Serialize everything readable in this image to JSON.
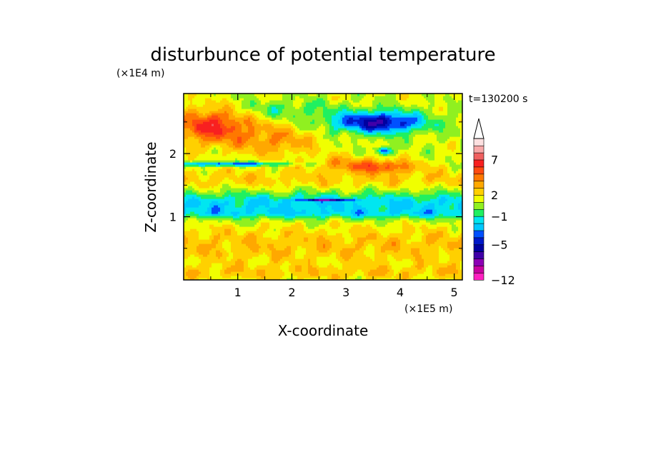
{
  "chart_data": {
    "type": "heatmap",
    "title": "disturbunce of potential temperature",
    "xlabel": "X-coordinate",
    "ylabel": "Z-coordinate",
    "x_unit": "(×1E5 m)",
    "y_unit": "(×1E4 m)",
    "time_label": "t=130200 s",
    "xlim": [
      0,
      5.15
    ],
    "ylim": [
      0,
      2.95
    ],
    "x_ticks": [
      1,
      2,
      3,
      4,
      5
    ],
    "y_ticks": [
      1,
      2
    ],
    "x_tick_labels": [
      "1",
      "2",
      "3",
      "4",
      "5"
    ],
    "y_tick_labels": [
      "1",
      "2"
    ],
    "colorbar": {
      "levels": [
        -12,
        -10,
        -8,
        -7,
        -6,
        -5,
        -4,
        -3,
        -2,
        -1,
        0,
        1,
        2,
        3,
        4,
        5,
        6,
        7,
        8,
        9
      ],
      "colors": [
        "#ff20c0",
        "#c800a0",
        "#8c00b4",
        "#4000a8",
        "#0000a0",
        "#0018c8",
        "#0050ff",
        "#00c8ff",
        "#00e6f0",
        "#20f060",
        "#90f020",
        "#f0ff00",
        "#ffd000",
        "#ffa800",
        "#ff7800",
        "#ff4a10",
        "#f82020",
        "#f06060",
        "#f8a8a8",
        "#fce0e0"
      ],
      "labels": [
        "7",
        "2",
        "−1",
        "−5",
        "−12"
      ],
      "extend": "max"
    },
    "grid": false
  },
  "colors": {
    "background": "#ffffff",
    "frame": "#000000"
  }
}
